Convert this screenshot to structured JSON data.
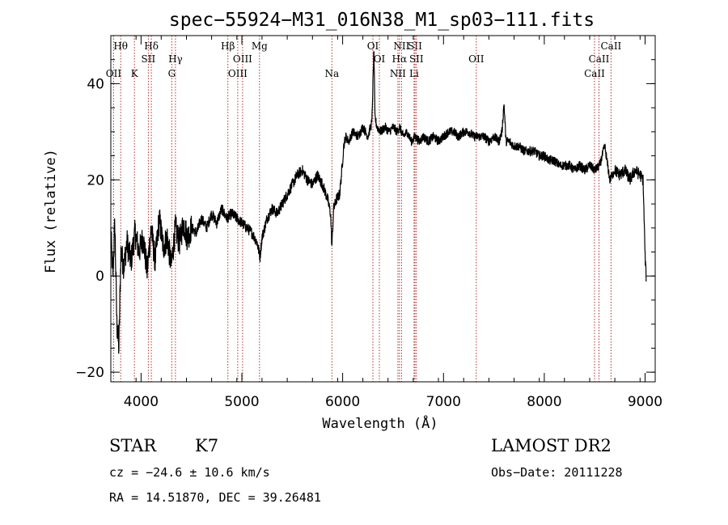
{
  "info": {
    "class": "STAR",
    "subclass": "K7",
    "survey": "LAMOST DR2",
    "cz": "cz = −24.6 ± 10.6 km/s",
    "obs_date": "Obs−Date: 20111228",
    "coords": "RA =  14.51870, DEC =  39.26481"
  },
  "chart_data": {
    "type": "line",
    "title": "spec−55924−M31_016N38_M1_sp03−111.fits",
    "xlabel": "Wavelength (Å)",
    "ylabel": "Flux (relative)",
    "xlim": [
      3700,
      9100
    ],
    "ylim": [
      -22,
      50
    ],
    "x_ticks": [
      4000,
      5000,
      6000,
      7000,
      8000,
      9000
    ],
    "x_tick_labels": [
      "4000",
      "5000",
      "6000",
      "7000",
      "8000",
      "9000"
    ],
    "y_ticks": [
      -20,
      0,
      20,
      40
    ],
    "y_tick_labels": [
      "−20",
      "0",
      "20",
      "40"
    ],
    "grid": false,
    "line_color": "#000000",
    "marker_color": "#b03030",
    "spectrum": {
      "x": [
        3700,
        3720,
        3740,
        3760,
        3780,
        3800,
        3830,
        3860,
        3900,
        3940,
        3980,
        4020,
        4060,
        4100,
        4140,
        4180,
        4220,
        4260,
        4300,
        4340,
        4380,
        4420,
        4460,
        4500,
        4550,
        4600,
        4650,
        4700,
        4750,
        4800,
        4850,
        4900,
        4950,
        5000,
        5050,
        5100,
        5150,
        5180,
        5200,
        5250,
        5300,
        5350,
        5400,
        5450,
        5500,
        5550,
        5600,
        5650,
        5700,
        5750,
        5800,
        5850,
        5880,
        5893,
        5910,
        5940,
        5970,
        6000,
        6010,
        6030,
        6060,
        6100,
        6150,
        6200,
        6250,
        6290,
        6300,
        6310,
        6320,
        6340,
        6380,
        6420,
        6460,
        6500,
        6540,
        6563,
        6600,
        6640,
        6680,
        6720,
        6760,
        6800,
        6850,
        6900,
        6950,
        7000,
        7050,
        7100,
        7150,
        7200,
        7250,
        7300,
        7350,
        7400,
        7450,
        7500,
        7550,
        7580,
        7600,
        7620,
        7650,
        7700,
        7750,
        7800,
        7850,
        7900,
        7950,
        8000,
        8050,
        8100,
        8150,
        8200,
        8250,
        8300,
        8350,
        8400,
        8450,
        8500,
        8550,
        8600,
        8650,
        8700,
        8750,
        8800,
        8850,
        8900,
        8950,
        8980,
        9000,
        9010
      ],
      "y": [
        9,
        0,
        11,
        -10,
        -15,
        5,
        2,
        7,
        3,
        9,
        5,
        8,
        1,
        10,
        3,
        12,
        6,
        8,
        2,
        10,
        7,
        11,
        8,
        10,
        9,
        12,
        10,
        13,
        11,
        14,
        12,
        13,
        12,
        11,
        10,
        9,
        7,
        4,
        8,
        12,
        14,
        13,
        15,
        17,
        19,
        21,
        22,
        20,
        19,
        21,
        19,
        16,
        13,
        6,
        14,
        16,
        17,
        24,
        27,
        29,
        28,
        30,
        29,
        31,
        29,
        32,
        40,
        47,
        33,
        31,
        30,
        31,
        30,
        31,
        30,
        31,
        29,
        30,
        28,
        29,
        28,
        29,
        28,
        29,
        28,
        29,
        30,
        30,
        29,
        30,
        30,
        29,
        29,
        29,
        28,
        29,
        28,
        30,
        36,
        28,
        28,
        27,
        27,
        26,
        26,
        26,
        25,
        25,
        24,
        24,
        23,
        23,
        23,
        22,
        23,
        22,
        23,
        22,
        23,
        27,
        20,
        22,
        21,
        22,
        20,
        22,
        21,
        20,
        4,
        0
      ]
    },
    "line_markers": [
      {
        "label": "Hθ",
        "x": 3798,
        "row": 0
      },
      {
        "label": "OII",
        "x": 3727,
        "row": 2
      },
      {
        "label": "K",
        "x": 3934,
        "row": 2
      },
      {
        "label": "Hδ",
        "x": 4102,
        "row": 0
      },
      {
        "label": "SII",
        "x": 4072,
        "row": 1
      },
      {
        "label": "Hγ",
        "x": 4341,
        "row": 1
      },
      {
        "label": "G",
        "x": 4305,
        "row": 2
      },
      {
        "label": "Hβ",
        "x": 4861,
        "row": 0
      },
      {
        "label": "OIII",
        "x": 5007,
        "row": 1
      },
      {
        "label": "OIII",
        "x": 4959,
        "row": 2
      },
      {
        "label": "Mg",
        "x": 5175,
        "row": 0
      },
      {
        "label": "Na",
        "x": 5893,
        "row": 2
      },
      {
        "label": "OI",
        "x": 6300,
        "row": 0
      },
      {
        "label": "OI",
        "x": 6364,
        "row": 1
      },
      {
        "label": "NII",
        "x": 6584,
        "row": 0
      },
      {
        "label": "SII",
        "x": 6717,
        "row": 0
      },
      {
        "label": "Hα",
        "x": 6563,
        "row": 1
      },
      {
        "label": "SII",
        "x": 6731,
        "row": 1
      },
      {
        "label": "NII",
        "x": 6548,
        "row": 2
      },
      {
        "label": "Li",
        "x": 6708,
        "row": 2
      },
      {
        "label": "OII",
        "x": 7325,
        "row": 1
      },
      {
        "label": "CaII",
        "x": 8662,
        "row": 0
      },
      {
        "label": "CaII",
        "x": 8542,
        "row": 1
      },
      {
        "label": "CaII",
        "x": 8498,
        "row": 2
      }
    ]
  }
}
